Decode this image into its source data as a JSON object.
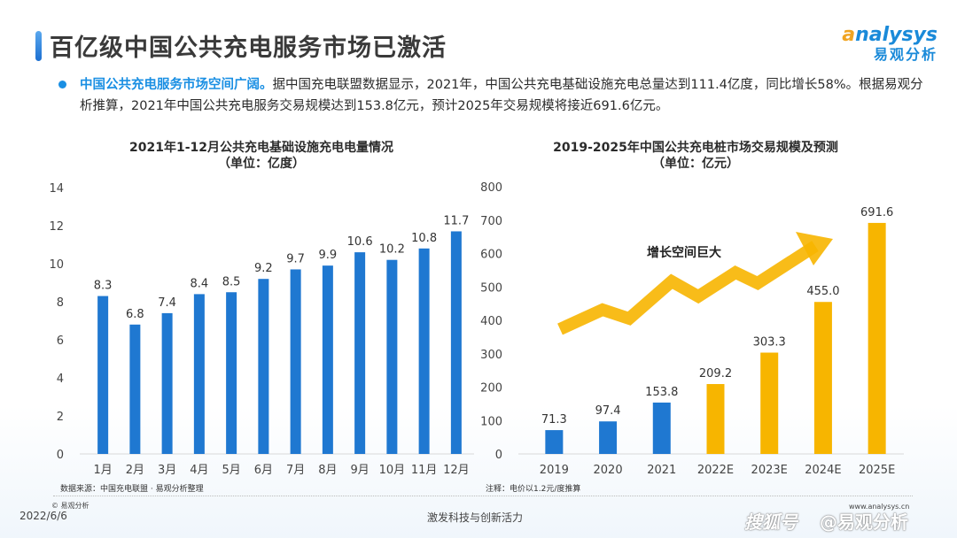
{
  "header": {
    "title": "百亿级中国公共充电服务市场已激活",
    "logo_en_a": "a",
    "logo_en_rest": "nalysys",
    "logo_cn": "易观分析"
  },
  "bullet": {
    "highlight": "中国公共充电服务市场空间广阔。",
    "text": "据中国充电联盟数据显示，2021年，中国公共充电基础设施充电总量达到111.4亿度，同比增长58%。根据易观分析推算，2021年中国公共充电服务交易规模达到153.8亿元，预计2025年交易规模将接近691.6亿元。"
  },
  "chart_data": [
    {
      "type": "bar",
      "title": "2021年1-12月公共充电基础设施充电电量情况",
      "subtitle": "（单位：亿度）",
      "categories": [
        "1月",
        "2月",
        "3月",
        "4月",
        "5月",
        "6月",
        "7月",
        "8月",
        "9月",
        "10月",
        "11月",
        "12月"
      ],
      "values": [
        8.3,
        6.8,
        7.4,
        8.4,
        8.5,
        9.2,
        9.7,
        9.9,
        10.6,
        10.2,
        10.8,
        11.7
      ],
      "data_labels": [
        "8.3",
        "6.8",
        "7.4",
        "8.4",
        "8.5",
        "9.2",
        "9.7",
        "9.9",
        "10.6",
        "10.2",
        "10.8",
        "11.7"
      ],
      "ylim": [
        0,
        14
      ],
      "yticks": [
        0,
        2,
        4,
        6,
        8,
        10,
        12,
        14
      ],
      "xlabel": "",
      "ylabel": "",
      "grid": false,
      "color": "#1f78d1",
      "source_note": "数据来源：中国充电联盟 · 易观分析整理"
    },
    {
      "type": "bar",
      "title": "2019-2025年中国公共充电桩市场交易规模及预测",
      "subtitle": "（单位：亿元）",
      "categories": [
        "2019",
        "2020",
        "2021",
        "2022E",
        "2023E",
        "2024E",
        "2025E"
      ],
      "values": [
        71.3,
        97.4,
        153.8,
        209.2,
        303.3,
        455.0,
        691.6
      ],
      "data_labels": [
        "71.3",
        "97.4",
        "153.8",
        "209.2",
        "303.3",
        "455.0",
        "691.6"
      ],
      "kinds": [
        "actual",
        "actual",
        "actual",
        "forecast",
        "forecast",
        "forecast",
        "forecast"
      ],
      "colors": {
        "actual": "#1f78d1",
        "forecast": "#f7b500"
      },
      "ylim": [
        0,
        800
      ],
      "yticks": [
        0,
        100,
        200,
        300,
        400,
        500,
        600,
        700,
        800
      ],
      "xlabel": "",
      "ylabel": "",
      "grid": false,
      "annotation": "增长空间巨大",
      "note": "注释：电价以1.2元/度推算"
    }
  ],
  "footer": {
    "copyright": "© 易观分析",
    "date": "2022/6/6",
    "slogan": "激发科技与创新活力",
    "url": "www.analysys.cn",
    "watermark": "@易观分析",
    "platform": "搜狐号"
  }
}
